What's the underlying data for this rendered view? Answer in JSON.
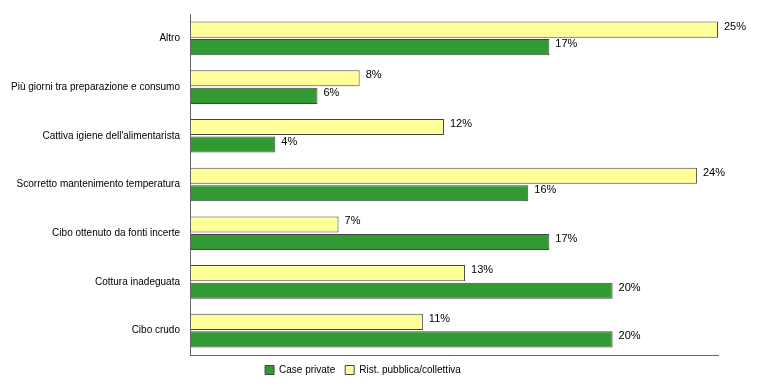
{
  "chart_data": {
    "type": "bar",
    "orientation": "horizontal",
    "categories": [
      "Altro",
      "Più giorni tra preparazione e consumo",
      "Cattiva igiene dell'alimentarista",
      "Scorretto mantenimento temperatura",
      "Cibo ottenuto da fonti incerte",
      "Cottura inadeguata",
      "Cibo crudo"
    ],
    "series": [
      {
        "name": "Case private",
        "color": "#339933",
        "values": [
          17,
          6,
          4,
          16,
          17,
          20,
          20
        ],
        "value_labels": [
          "17%",
          "6%",
          "4%",
          "16%",
          "17%",
          "20%",
          "20%"
        ]
      },
      {
        "name": "Rist. pubblica/collettiva",
        "color": "#ffff99",
        "values": [
          25,
          8,
          12,
          24,
          7,
          13,
          11
        ],
        "value_labels": [
          "25%",
          "8%",
          "12%",
          "24%",
          "7%",
          "13%",
          "11%"
        ]
      }
    ],
    "xlim": [
      0,
      25
    ],
    "grid": false,
    "legend": "bottom",
    "data_labels": true,
    "tick_labels": "y"
  }
}
